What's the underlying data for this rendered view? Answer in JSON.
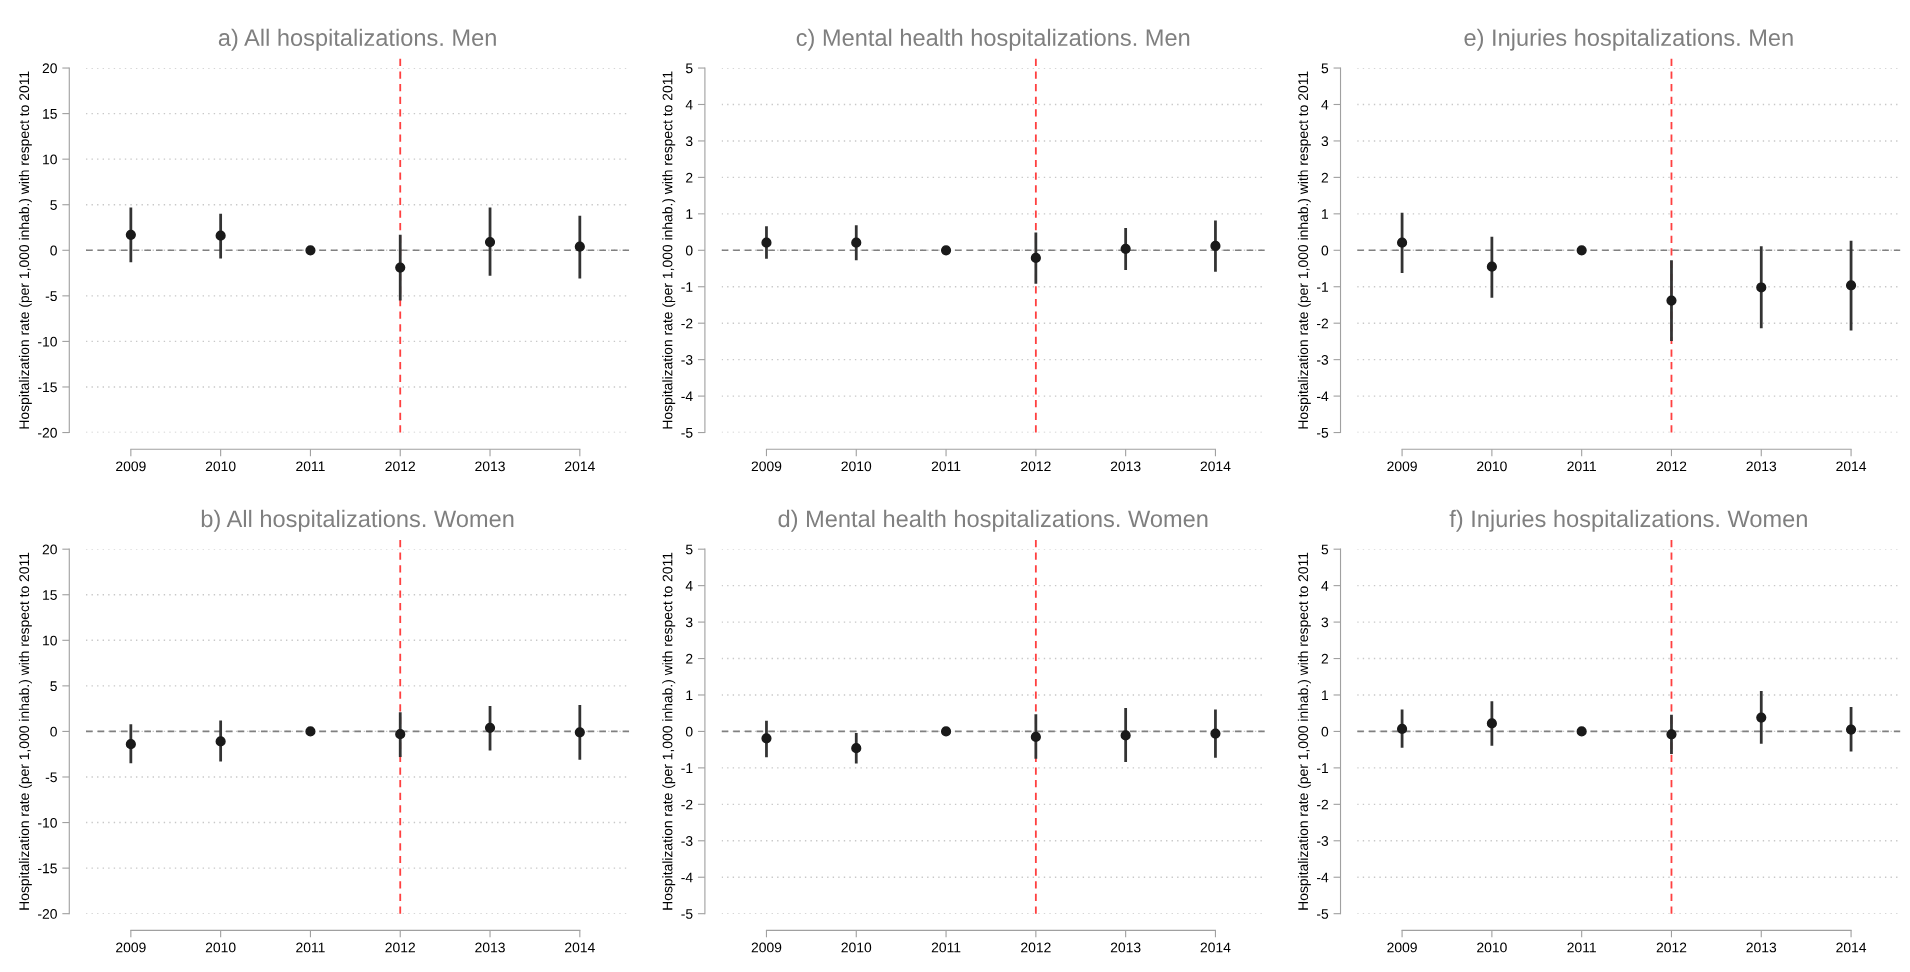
{
  "chart_data": [
    {
      "type": "scatter",
      "title": "a) All hospitalizations. Men",
      "ylabel": "Hospitalization rate (per 1,000 inhab.) with respect to 2011",
      "categories": [
        "2009",
        "2010",
        "2011",
        "2012",
        "2013",
        "2014"
      ],
      "values": [
        1.7,
        1.6,
        0,
        -1.9,
        0.9,
        0.4
      ],
      "errors": [
        [
          -1.3,
          4.7
        ],
        [
          -0.9,
          4.0
        ],
        null,
        [
          -5.5,
          1.7
        ],
        [
          -2.8,
          4.7
        ],
        [
          -3.1,
          3.8
        ]
      ],
      "color": "#1a1a1a",
      "marker": "circle",
      "ylim": [
        -20,
        20
      ],
      "yticks": [
        -20,
        -15,
        -10,
        -5,
        0,
        5,
        10,
        15,
        20
      ],
      "grid": "y",
      "ref_lines": [
        {
          "axis": "y",
          "value": 0,
          "color": "#808080",
          "line_style": "dashed"
        },
        {
          "axis": "x",
          "value": "2012",
          "color": "#ff4040",
          "line_style": "dashed"
        }
      ]
    },
    {
      "type": "scatter",
      "title": "c) Mental health hospitalizations. Men",
      "ylabel": "Hospitalization rate (per 1,000 inhab.) with respect to 2011",
      "categories": [
        "2009",
        "2010",
        "2011",
        "2012",
        "2013",
        "2014"
      ],
      "values": [
        0.21,
        0.21,
        0,
        -0.21,
        0.04,
        0.12
      ],
      "errors": [
        [
          -0.23,
          0.66
        ],
        [
          -0.27,
          0.69
        ],
        null,
        [
          -0.92,
          0.49
        ],
        [
          -0.54,
          0.61
        ],
        [
          -0.59,
          0.82
        ]
      ],
      "color": "#1a1a1a",
      "marker": "circle",
      "ylim": [
        -5,
        5
      ],
      "yticks": [
        -5,
        -4,
        -3,
        -2,
        -1,
        0,
        1,
        2,
        3,
        4,
        5
      ],
      "grid": "y",
      "ref_lines": [
        {
          "axis": "y",
          "value": 0,
          "color": "#808080",
          "line_style": "dashed"
        },
        {
          "axis": "x",
          "value": "2012",
          "color": "#ff4040",
          "line_style": "dashed"
        }
      ]
    },
    {
      "type": "scatter",
      "title": "e) Injuries hospitalizations. Men",
      "ylabel": "Hospitalization rate (per 1,000 inhab.) with respect to 2011",
      "categories": [
        "2009",
        "2010",
        "2011",
        "2012",
        "2013",
        "2014"
      ],
      "values": [
        0.21,
        -0.45,
        0,
        -1.38,
        -1.02,
        -0.96
      ],
      "errors": [
        [
          -0.62,
          1.03
        ],
        [
          -1.3,
          0.37
        ],
        null,
        [
          -2.49,
          -0.27
        ],
        [
          -2.14,
          0.11
        ],
        [
          -2.2,
          0.26
        ]
      ],
      "color": "#1a1a1a",
      "marker": "circle",
      "ylim": [
        -5,
        5
      ],
      "yticks": [
        -5,
        -4,
        -3,
        -2,
        -1,
        0,
        1,
        2,
        3,
        4,
        5
      ],
      "grid": "y",
      "ref_lines": [
        {
          "axis": "y",
          "value": 0,
          "color": "#808080",
          "line_style": "dashed"
        },
        {
          "axis": "x",
          "value": "2012",
          "color": "#ff4040",
          "line_style": "dashed"
        }
      ]
    },
    {
      "type": "scatter",
      "title": "b) All hospitalizations. Women",
      "ylabel": "Hospitalization rate (per 1,000 inhab.) with respect to 2011",
      "categories": [
        "2009",
        "2010",
        "2011",
        "2012",
        "2013",
        "2014"
      ],
      "values": [
        -1.4,
        -1.1,
        0,
        -0.3,
        0.4,
        -0.1
      ],
      "errors": [
        [
          -3.5,
          0.8
        ],
        [
          -3.3,
          1.2
        ],
        null,
        [
          -2.8,
          2.1
        ],
        [
          -2.1,
          2.8
        ],
        [
          -3.1,
          2.9
        ]
      ],
      "color": "#1a1a1a",
      "marker": "circle",
      "ylim": [
        -20,
        20
      ],
      "yticks": [
        -20,
        -15,
        -10,
        -5,
        0,
        5,
        10,
        15,
        20
      ],
      "grid": "y",
      "ref_lines": [
        {
          "axis": "y",
          "value": 0,
          "color": "#808080",
          "line_style": "dashed"
        },
        {
          "axis": "x",
          "value": "2012",
          "color": "#ff4040",
          "line_style": "dashed"
        }
      ]
    },
    {
      "type": "scatter",
      "title": "d) Mental health hospitalizations. Women",
      "ylabel": "Hospitalization rate (per 1,000 inhab.) with respect to 2011",
      "categories": [
        "2009",
        "2010",
        "2011",
        "2012",
        "2013",
        "2014"
      ],
      "values": [
        -0.19,
        -0.46,
        0,
        -0.15,
        -0.11,
        -0.06
      ],
      "errors": [
        [
          -0.71,
          0.29
        ],
        [
          -0.88,
          -0.04
        ],
        null,
        [
          -0.75,
          0.47
        ],
        [
          -0.84,
          0.64
        ],
        [
          -0.72,
          0.6
        ]
      ],
      "color": "#1a1a1a",
      "marker": "circle",
      "ylim": [
        -5,
        5
      ],
      "yticks": [
        -5,
        -4,
        -3,
        -2,
        -1,
        0,
        1,
        2,
        3,
        4,
        5
      ],
      "grid": "y",
      "ref_lines": [
        {
          "axis": "y",
          "value": 0,
          "color": "#808080",
          "line_style": "dashed"
        },
        {
          "axis": "x",
          "value": "2012",
          "color": "#ff4040",
          "line_style": "dashed"
        }
      ]
    },
    {
      "type": "scatter",
      "title": "f) Injuries hospitalizations. Women",
      "ylabel": "Hospitalization rate (per 1,000 inhab.) with respect to 2011",
      "categories": [
        "2009",
        "2010",
        "2011",
        "2012",
        "2013",
        "2014"
      ],
      "values": [
        0.07,
        0.22,
        0,
        -0.08,
        0.38,
        0.05
      ],
      "errors": [
        [
          -0.45,
          0.6
        ],
        [
          -0.39,
          0.83
        ],
        null,
        [
          -0.62,
          0.46
        ],
        [
          -0.34,
          1.11
        ],
        [
          -0.55,
          0.67
        ]
      ],
      "color": "#1a1a1a",
      "marker": "circle",
      "ylim": [
        -5,
        5
      ],
      "yticks": [
        -5,
        -4,
        -3,
        -2,
        -1,
        0,
        1,
        2,
        3,
        4,
        5
      ],
      "grid": "y",
      "ref_lines": [
        {
          "axis": "y",
          "value": 0,
          "color": "#808080",
          "line_style": "dashed"
        },
        {
          "axis": "x",
          "value": "2012",
          "color": "#ff4040",
          "line_style": "dashed"
        }
      ]
    }
  ]
}
